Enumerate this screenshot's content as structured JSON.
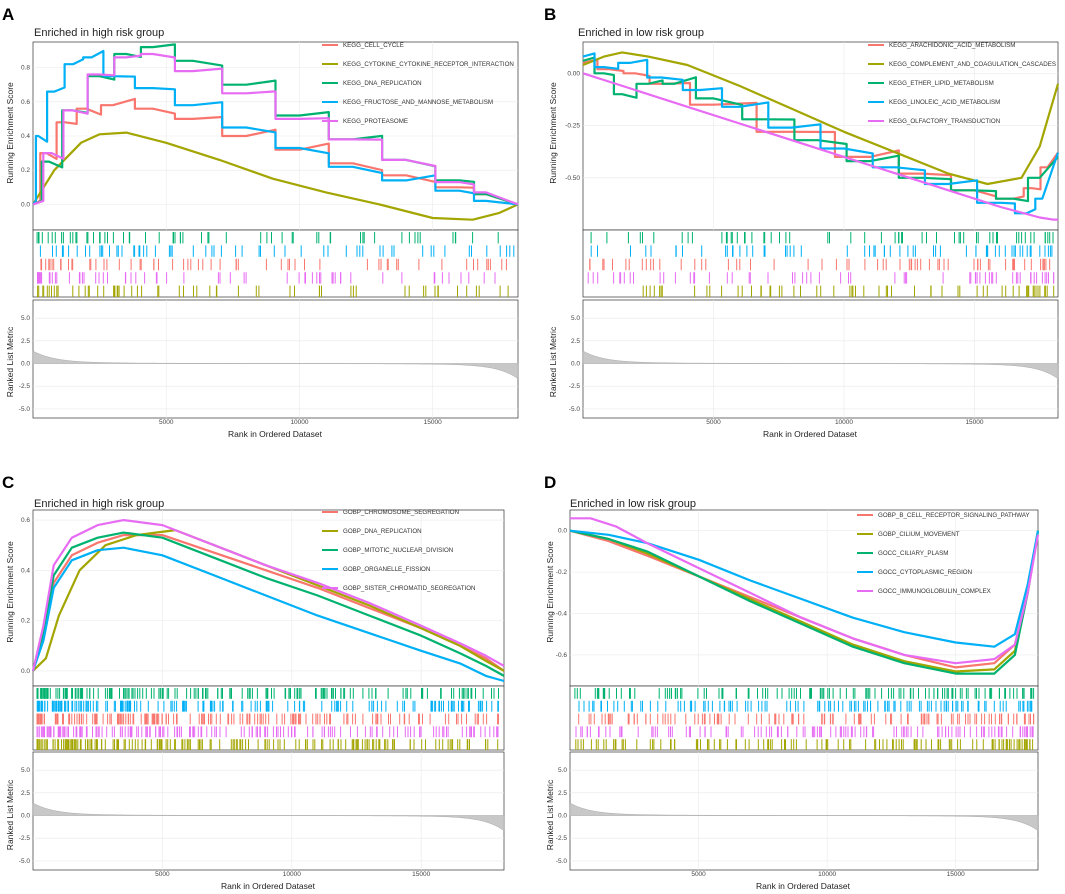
{
  "colors": {
    "red": "#F8766D",
    "olive": "#A3A500",
    "green": "#00B26F",
    "blue": "#00B0F6",
    "pink": "#E76BF3",
    "grid": "#eaeaea",
    "metric_fill": "#c8c8c8"
  },
  "shared": {
    "xlabel": "Rank in Ordered Dataset",
    "ylabel_top": "Running Enrichment Score",
    "ylabel_bottom": "Ranked List Metric",
    "x_max": 18200,
    "x_ticks": [
      5000,
      10000,
      15000
    ],
    "metric_ylim": [
      -6,
      7
    ],
    "metric_ticks": [
      5.0,
      2.5,
      0.0,
      -2.5,
      -5.0
    ]
  },
  "chart_data": [
    {
      "panel": "A",
      "type": "line",
      "title": "Enriched in high risk group",
      "ylim": [
        -0.15,
        0.95
      ],
      "yticks": [
        0.0,
        0.2,
        0.4,
        0.6,
        0.8
      ],
      "legend_position": "top-right",
      "series": [
        {
          "name": "KEGG_CELL_CYCLE",
          "color": "red",
          "step": true,
          "x": [
            0,
            500,
            1200,
            2000,
            3000,
            4500,
            6000,
            8000,
            10000,
            12000,
            14000,
            16000,
            17000,
            18200
          ],
          "y": [
            0.0,
            0.3,
            0.48,
            0.56,
            0.58,
            0.56,
            0.5,
            0.4,
            0.32,
            0.24,
            0.17,
            0.1,
            0.06,
            0.0
          ]
        },
        {
          "name": "KEGG_CYTOKINE_CYTOKINE_RECEPTOR_INTERACTION",
          "color": "olive",
          "step": false,
          "x": [
            0,
            800,
            1800,
            2500,
            3500,
            5000,
            7000,
            9000,
            11000,
            13000,
            15000,
            16500,
            17500,
            18200
          ],
          "y": [
            0.0,
            0.2,
            0.36,
            0.41,
            0.42,
            0.36,
            0.26,
            0.15,
            0.07,
            0.0,
            -0.08,
            -0.09,
            -0.05,
            0.0
          ]
        },
        {
          "name": "KEGG_DNA_REPLICATION",
          "color": "green",
          "step": true,
          "x": [
            0,
            600,
            1500,
            2500,
            3500,
            4500,
            6000,
            8000,
            10000,
            12000,
            14000,
            16000,
            17000,
            18200
          ],
          "y": [
            0.0,
            0.25,
            0.55,
            0.75,
            0.88,
            0.92,
            0.84,
            0.7,
            0.52,
            0.38,
            0.26,
            0.14,
            0.06,
            0.0
          ]
        },
        {
          "name": "KEGG_FRUCTOSE_AND_MANNOSE_METABOLISM",
          "color": "blue",
          "step": true,
          "x": [
            0,
            200,
            800,
            1500,
            2200,
            3000,
            4500,
            6000,
            8000,
            10000,
            12000,
            14000,
            16000,
            17000,
            18200
          ],
          "y": [
            0.0,
            0.4,
            0.66,
            0.82,
            0.86,
            0.75,
            0.68,
            0.58,
            0.45,
            0.33,
            0.22,
            0.14,
            0.08,
            0.02,
            0.0
          ]
        },
        {
          "name": "KEGG_PROTEASOME",
          "color": "pink",
          "step": true,
          "x": [
            0,
            700,
            1500,
            2500,
            3500,
            4500,
            6000,
            8000,
            10000,
            12000,
            14000,
            16000,
            17000,
            18200
          ],
          "y": [
            0.0,
            0.3,
            0.55,
            0.76,
            0.86,
            0.88,
            0.78,
            0.65,
            0.5,
            0.38,
            0.26,
            0.13,
            0.07,
            0.0
          ]
        }
      ]
    },
    {
      "panel": "B",
      "type": "line",
      "title": "Enriched in low risk group",
      "ylim": [
        -0.75,
        0.15
      ],
      "yticks": [
        0.0,
        -0.25,
        -0.5
      ],
      "yticklabels": [
        "0.00",
        "-0.25",
        "-0.50"
      ],
      "legend_position": "top-right",
      "series": [
        {
          "name": "KEGG_ARACHIDONIC_ACID_METABOLISM",
          "color": "red",
          "step": true,
          "x": [
            0,
            1000,
            2000,
            3000,
            5000,
            8000,
            11000,
            13000,
            15000,
            16500,
            17200,
            17800,
            18200
          ],
          "y": [
            0.05,
            0.02,
            0.0,
            -0.05,
            -0.15,
            -0.28,
            -0.4,
            -0.48,
            -0.56,
            -0.6,
            -0.55,
            -0.45,
            -0.38
          ]
        },
        {
          "name": "KEGG_COMPLEMENT_AND_COAGULATION_CASCADES",
          "color": "olive",
          "step": false,
          "x": [
            0,
            800,
            1500,
            2500,
            4000,
            6000,
            8000,
            10000,
            12000,
            14000,
            15500,
            16800,
            17500,
            18200
          ],
          "y": [
            0.04,
            0.08,
            0.1,
            0.08,
            0.04,
            -0.06,
            -0.17,
            -0.28,
            -0.38,
            -0.48,
            -0.53,
            -0.5,
            -0.35,
            -0.05
          ]
        },
        {
          "name": "KEGG_ETHER_LIPID_METABOLISM",
          "color": "green",
          "step": true,
          "x": [
            0,
            800,
            1500,
            2500,
            3500,
            5000,
            7000,
            9000,
            11000,
            13000,
            15000,
            16500,
            17500,
            18200
          ],
          "y": [
            0.06,
            0.0,
            -0.1,
            -0.05,
            -0.05,
            -0.12,
            -0.22,
            -0.32,
            -0.42,
            -0.5,
            -0.56,
            -0.6,
            -0.5,
            -0.4
          ]
        },
        {
          "name": "KEGG_LINOLEIC_ACID_METABOLISM",
          "color": "blue",
          "step": true,
          "x": [
            0,
            800,
            1800,
            3000,
            4500,
            6000,
            8000,
            10000,
            12000,
            14000,
            16000,
            17000,
            17600,
            18200
          ],
          "y": [
            0.08,
            0.03,
            0.05,
            -0.02,
            -0.08,
            -0.16,
            -0.26,
            -0.36,
            -0.45,
            -0.53,
            -0.62,
            -0.67,
            -0.6,
            -0.38
          ]
        },
        {
          "name": "KEGG_OLFACTORY_TRANSDUCTION",
          "color": "pink",
          "step": false,
          "x": [
            0,
            2000,
            4000,
            6000,
            8000,
            10000,
            12000,
            14000,
            16000,
            17500,
            18000,
            18200
          ],
          "y": [
            0.0,
            -0.08,
            -0.16,
            -0.24,
            -0.32,
            -0.4,
            -0.48,
            -0.56,
            -0.64,
            -0.69,
            -0.7,
            -0.7
          ]
        }
      ]
    },
    {
      "panel": "C",
      "type": "line",
      "title": "Enriched in high risk group",
      "ylim": [
        -0.06,
        0.64
      ],
      "yticks": [
        0.0,
        0.2,
        0.4,
        0.6
      ],
      "legend_position": "top-right",
      "series": [
        {
          "name": "GOBP_CHROMOSOME_SEGREGATION",
          "color": "red",
          "step": false,
          "x": [
            0,
            400,
            800,
            1500,
            2500,
            3500,
            5000,
            7000,
            9000,
            11000,
            13000,
            15000,
            16500,
            17500,
            18200
          ],
          "y": [
            0.0,
            0.15,
            0.35,
            0.46,
            0.51,
            0.54,
            0.54,
            0.47,
            0.4,
            0.33,
            0.25,
            0.17,
            0.1,
            0.05,
            0.0
          ]
        },
        {
          "name": "GOBP_DNA_REPLICATION",
          "color": "olive",
          "step": false,
          "x": [
            0,
            500,
            1000,
            1800,
            2800,
            4000,
            5500,
            7000,
            9000,
            11000,
            13000,
            15000,
            16500,
            17500,
            18200
          ],
          "y": [
            0.0,
            0.05,
            0.22,
            0.4,
            0.5,
            0.54,
            0.56,
            0.5,
            0.42,
            0.34,
            0.26,
            0.17,
            0.1,
            0.04,
            0.0
          ]
        },
        {
          "name": "GOBP_MITOTIC_NUCLEAR_DIVISION",
          "color": "green",
          "step": false,
          "x": [
            0,
            400,
            800,
            1500,
            2500,
            3500,
            5000,
            7000,
            9000,
            11000,
            13000,
            15000,
            16500,
            17500,
            18200
          ],
          "y": [
            0.0,
            0.15,
            0.38,
            0.49,
            0.53,
            0.55,
            0.53,
            0.45,
            0.37,
            0.3,
            0.22,
            0.14,
            0.07,
            0.02,
            -0.02
          ]
        },
        {
          "name": "GOBP_ORGANELLE_FISSION",
          "color": "blue",
          "step": false,
          "x": [
            0,
            400,
            800,
            1500,
            2500,
            3500,
            5000,
            7000,
            9000,
            11000,
            13000,
            15000,
            16500,
            17500,
            18200
          ],
          "y": [
            0.0,
            0.12,
            0.33,
            0.44,
            0.48,
            0.49,
            0.46,
            0.38,
            0.3,
            0.22,
            0.15,
            0.08,
            0.03,
            -0.02,
            -0.04
          ]
        },
        {
          "name": "GOBP_SISTER_CHROMATID_SEGREGATION",
          "color": "pink",
          "step": false,
          "x": [
            0,
            400,
            800,
            1500,
            2500,
            3500,
            5000,
            7000,
            9000,
            11000,
            13000,
            15000,
            16500,
            17500,
            18200
          ],
          "y": [
            0.0,
            0.18,
            0.42,
            0.53,
            0.58,
            0.6,
            0.58,
            0.5,
            0.42,
            0.35,
            0.27,
            0.18,
            0.11,
            0.06,
            0.02
          ]
        }
      ]
    },
    {
      "panel": "D",
      "type": "line",
      "title": "Enriched in low risk group",
      "ylim": [
        -0.75,
        0.1
      ],
      "yticks": [
        0.0,
        -0.2,
        -0.4,
        -0.6
      ],
      "legend_position": "top-right",
      "series": [
        {
          "name": "GOBP_B_CELL_RECEPTOR_SIGNALING_PATHWAY",
          "color": "red",
          "step": false,
          "x": [
            0,
            1500,
            3000,
            5000,
            7000,
            9000,
            11000,
            13000,
            15000,
            16500,
            17300,
            17800,
            18200
          ],
          "y": [
            0.0,
            -0.05,
            -0.12,
            -0.22,
            -0.32,
            -0.42,
            -0.52,
            -0.6,
            -0.66,
            -0.64,
            -0.55,
            -0.3,
            0.0
          ]
        },
        {
          "name": "GOBP_CILIUM_MOVEMENT",
          "color": "olive",
          "step": false,
          "x": [
            0,
            1500,
            3000,
            5000,
            7000,
            9000,
            11000,
            13000,
            15000,
            16500,
            17300,
            17800,
            18200
          ],
          "y": [
            0.0,
            -0.04,
            -0.11,
            -0.22,
            -0.33,
            -0.44,
            -0.55,
            -0.63,
            -0.68,
            -0.67,
            -0.58,
            -0.3,
            0.0
          ]
        },
        {
          "name": "GOCC_CILIARY_PLASM",
          "color": "green",
          "step": false,
          "x": [
            0,
            1500,
            3000,
            5000,
            7000,
            9000,
            11000,
            13000,
            15000,
            16500,
            17300,
            17800,
            18200
          ],
          "y": [
            0.0,
            -0.04,
            -0.1,
            -0.22,
            -0.34,
            -0.45,
            -0.56,
            -0.64,
            -0.69,
            -0.69,
            -0.6,
            -0.3,
            0.0
          ]
        },
        {
          "name": "GOCC_CYTOPLASMIC_REGION",
          "color": "blue",
          "step": false,
          "x": [
            0,
            1500,
            3000,
            5000,
            7000,
            9000,
            11000,
            13000,
            15000,
            16500,
            17300,
            17800,
            18200
          ],
          "y": [
            0.0,
            -0.02,
            -0.06,
            -0.14,
            -0.24,
            -0.33,
            -0.42,
            -0.49,
            -0.54,
            -0.56,
            -0.5,
            -0.26,
            0.0
          ]
        },
        {
          "name": "GOCC_IMMUNOGLOBULIN_COMPLEX",
          "color": "pink",
          "step": false,
          "x": [
            0,
            800,
            1800,
            3000,
            5000,
            7000,
            9000,
            11000,
            13000,
            15000,
            16500,
            17300,
            17800,
            18200
          ],
          "y": [
            0.06,
            0.06,
            0.02,
            -0.06,
            -0.18,
            -0.3,
            -0.42,
            -0.52,
            -0.6,
            -0.64,
            -0.62,
            -0.55,
            -0.3,
            -0.02
          ]
        }
      ]
    }
  ]
}
